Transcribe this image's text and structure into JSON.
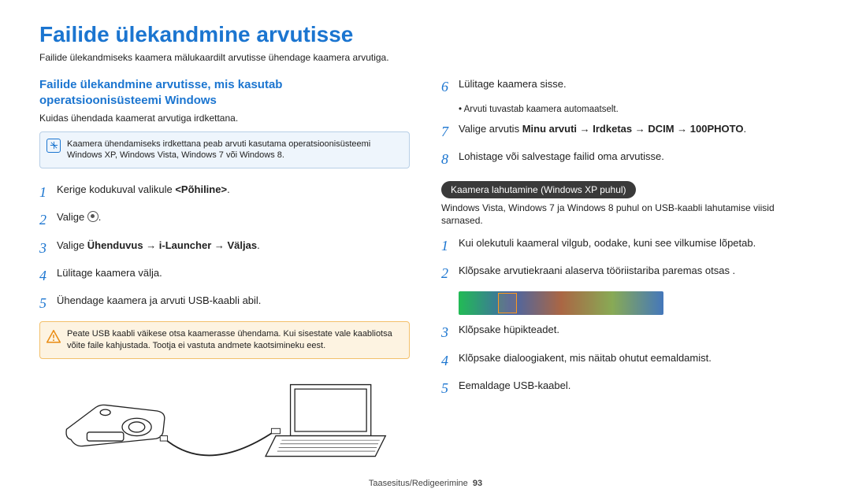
{
  "title": "Failide ülekandmine arvutisse",
  "intro": "Failide ülekandmiseks kaamera mälukaardilt arvutisse ühendage kaamera arvutiga.",
  "section_heading_l1": "Failide ülekandmine arvutisse, mis kasutab",
  "section_heading_l2": "operatsioonisüsteemi Windows",
  "section_sub": "Kuidas ühendada kaamerat arvutiga irdkettana.",
  "note_text": "Kaamera ühendamiseks irdkettana peab arvuti kasutama operatsioonisüsteemi Windows XP, Windows Vista, Windows 7 või Windows 8.",
  "note_icon_color": "#1b75d0",
  "warn_text": "Peate USB kaabli väikese otsa kaamerasse ühendama. Kui sisestate vale kaabliotsa võite faile kahjustada. Tootja ei vastuta andmete kaotsimineku eest.",
  "warn_color": "#e98b12",
  "left_steps": [
    {
      "n": "1",
      "pre": "Kerige kodukuval valikule ",
      "bold": "<Põhiline>",
      "post": "."
    },
    {
      "n": "2",
      "pre": "Valige ",
      "icon": true,
      "post": "."
    },
    {
      "n": "3",
      "pre": "Valige ",
      "bold": "Ühenduvus → i-Launcher → Väljas",
      "post": "."
    },
    {
      "n": "4",
      "pre": "Lülitage kaamera välja."
    },
    {
      "n": "5",
      "pre": "Ühendage kaamera ja arvuti USB-kaabli abil."
    }
  ],
  "right_steps_a": [
    {
      "n": "6",
      "pre": "Lülitage kaamera sisse.",
      "bullet": "Arvuti tuvastab kaamera automaatselt."
    },
    {
      "n": "7",
      "pre": "Valige arvutis ",
      "bold": "Minu arvuti → Irdketas → DCIM → 100PHOTO",
      "post": "."
    },
    {
      "n": "8",
      "pre": "Lohistage või salvestage failid oma arvutisse."
    }
  ],
  "pill_label": "Kaamera lahutamine (Windows XP puhul)",
  "pill_text": "Windows Vista, Windows 7 ja Windows 8 puhul on USB-kaabli lahutamise viisid sarnased.",
  "right_steps_b": [
    {
      "n": "1",
      "pre": "Kui olekutuli kaameral vilgub, oodake, kuni see vilkumise lõpetab."
    },
    {
      "n": "2",
      "pre": "Klõpsake arvutiekraani alaserva tööriistariba paremas otsas       .",
      "img": true
    },
    {
      "n": "3",
      "pre": "Klõpsake hüpikteadet."
    },
    {
      "n": "4",
      "pre": "Klõpsake dialoogiakent, mis näitab ohutut eemaldamist."
    },
    {
      "n": "5",
      "pre": "Eemaldage USB-kaabel."
    }
  ],
  "footer_text": "Taasesitus/Redigeerimine",
  "page_number": "93",
  "colors": {
    "heading": "#1b75d0",
    "note_bg": "#eef5fc",
    "note_border": "#b8cfe6",
    "warn_bg": "#fdf3e1",
    "warn_border": "#f3c06b",
    "pill_bg": "#3a3a3a"
  }
}
